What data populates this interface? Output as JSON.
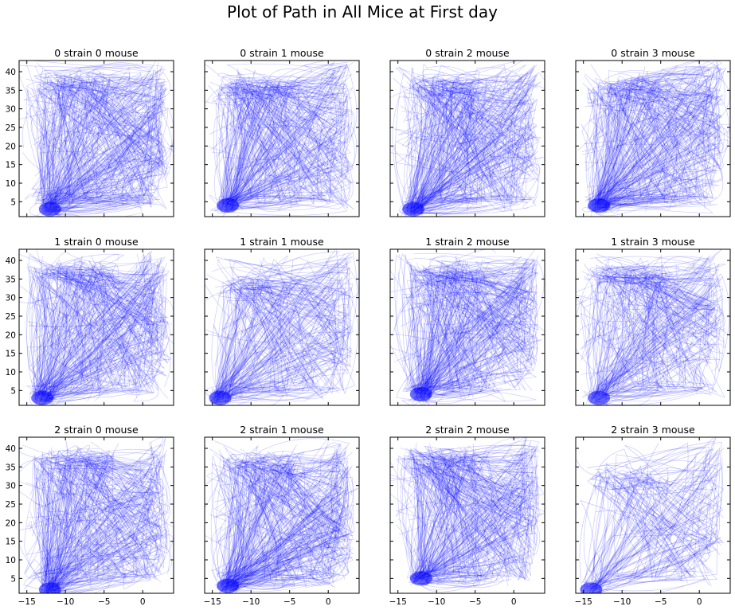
{
  "figure": {
    "title": "Plot of Path in All Mice at First day"
  },
  "style": {
    "path_color": "#0000ff",
    "frame_color": "#000000",
    "background": "#ffffff"
  },
  "chart_data": {
    "type": "line",
    "title": "Plot of Path in All Mice at First day",
    "xlim": [
      -16,
      4
    ],
    "ylim": [
      1,
      43
    ],
    "xticks": [
      -15,
      -10,
      -5,
      0
    ],
    "xtick_labels": [
      "−15",
      "−10",
      "−5",
      "0"
    ],
    "yticks": [
      5,
      10,
      15,
      20,
      25,
      30,
      35,
      40
    ],
    "ytick_labels": [
      "5",
      "10",
      "15",
      "20",
      "25",
      "30",
      "35",
      "40"
    ],
    "grid": false,
    "legend": "none",
    "layout_rows": 3,
    "layout_cols": 4,
    "panels": [
      {
        "title": "0 strain 0 mouse",
        "start_region": {
          "x": -12,
          "y": 3
        },
        "top_arm": {
          "y": 37
        },
        "density": "high"
      },
      {
        "title": "0 strain 1 mouse",
        "start_region": {
          "x": -13,
          "y": 4
        },
        "top_arm": {
          "y": 36
        },
        "density": "high"
      },
      {
        "title": "0 strain 2 mouse",
        "start_region": {
          "x": -13,
          "y": 3
        },
        "top_arm": {
          "y": 36
        },
        "density": "high"
      },
      {
        "title": "0 strain 3 mouse",
        "start_region": {
          "x": -13,
          "y": 4
        },
        "top_arm": {
          "y": 36
        },
        "density": "high"
      },
      {
        "title": "1 strain 0 mouse",
        "start_region": {
          "x": -13,
          "y": 3
        },
        "top_arm": {
          "y": 37
        },
        "density": "high"
      },
      {
        "title": "1 strain 1 mouse",
        "start_region": {
          "x": -14,
          "y": 3
        },
        "top_arm": {
          "y": 33
        },
        "density": "medium"
      },
      {
        "title": "1 strain 2 mouse",
        "start_region": {
          "x": -12,
          "y": 4
        },
        "top_arm": {
          "y": 37
        },
        "density": "high"
      },
      {
        "title": "1 strain 3 mouse",
        "start_region": {
          "x": -13,
          "y": 3
        },
        "top_arm": {
          "y": 36
        },
        "density": "medium"
      },
      {
        "title": "2 strain 0 mouse",
        "start_region": {
          "x": -12,
          "y": 2
        },
        "top_arm": {
          "y": 37
        },
        "density": "high"
      },
      {
        "title": "2 strain 1 mouse",
        "start_region": {
          "x": -13,
          "y": 3
        },
        "top_arm": {
          "y": 36
        },
        "density": "high"
      },
      {
        "title": "2 strain 2 mouse",
        "start_region": {
          "x": -12,
          "y": 5
        },
        "top_arm": {
          "y": 37
        },
        "density": "high"
      },
      {
        "title": "2 strain 3 mouse",
        "start_region": {
          "x": -14,
          "y": 2
        },
        "top_arm": {
          "y": 32
        },
        "density": "low"
      }
    ]
  }
}
